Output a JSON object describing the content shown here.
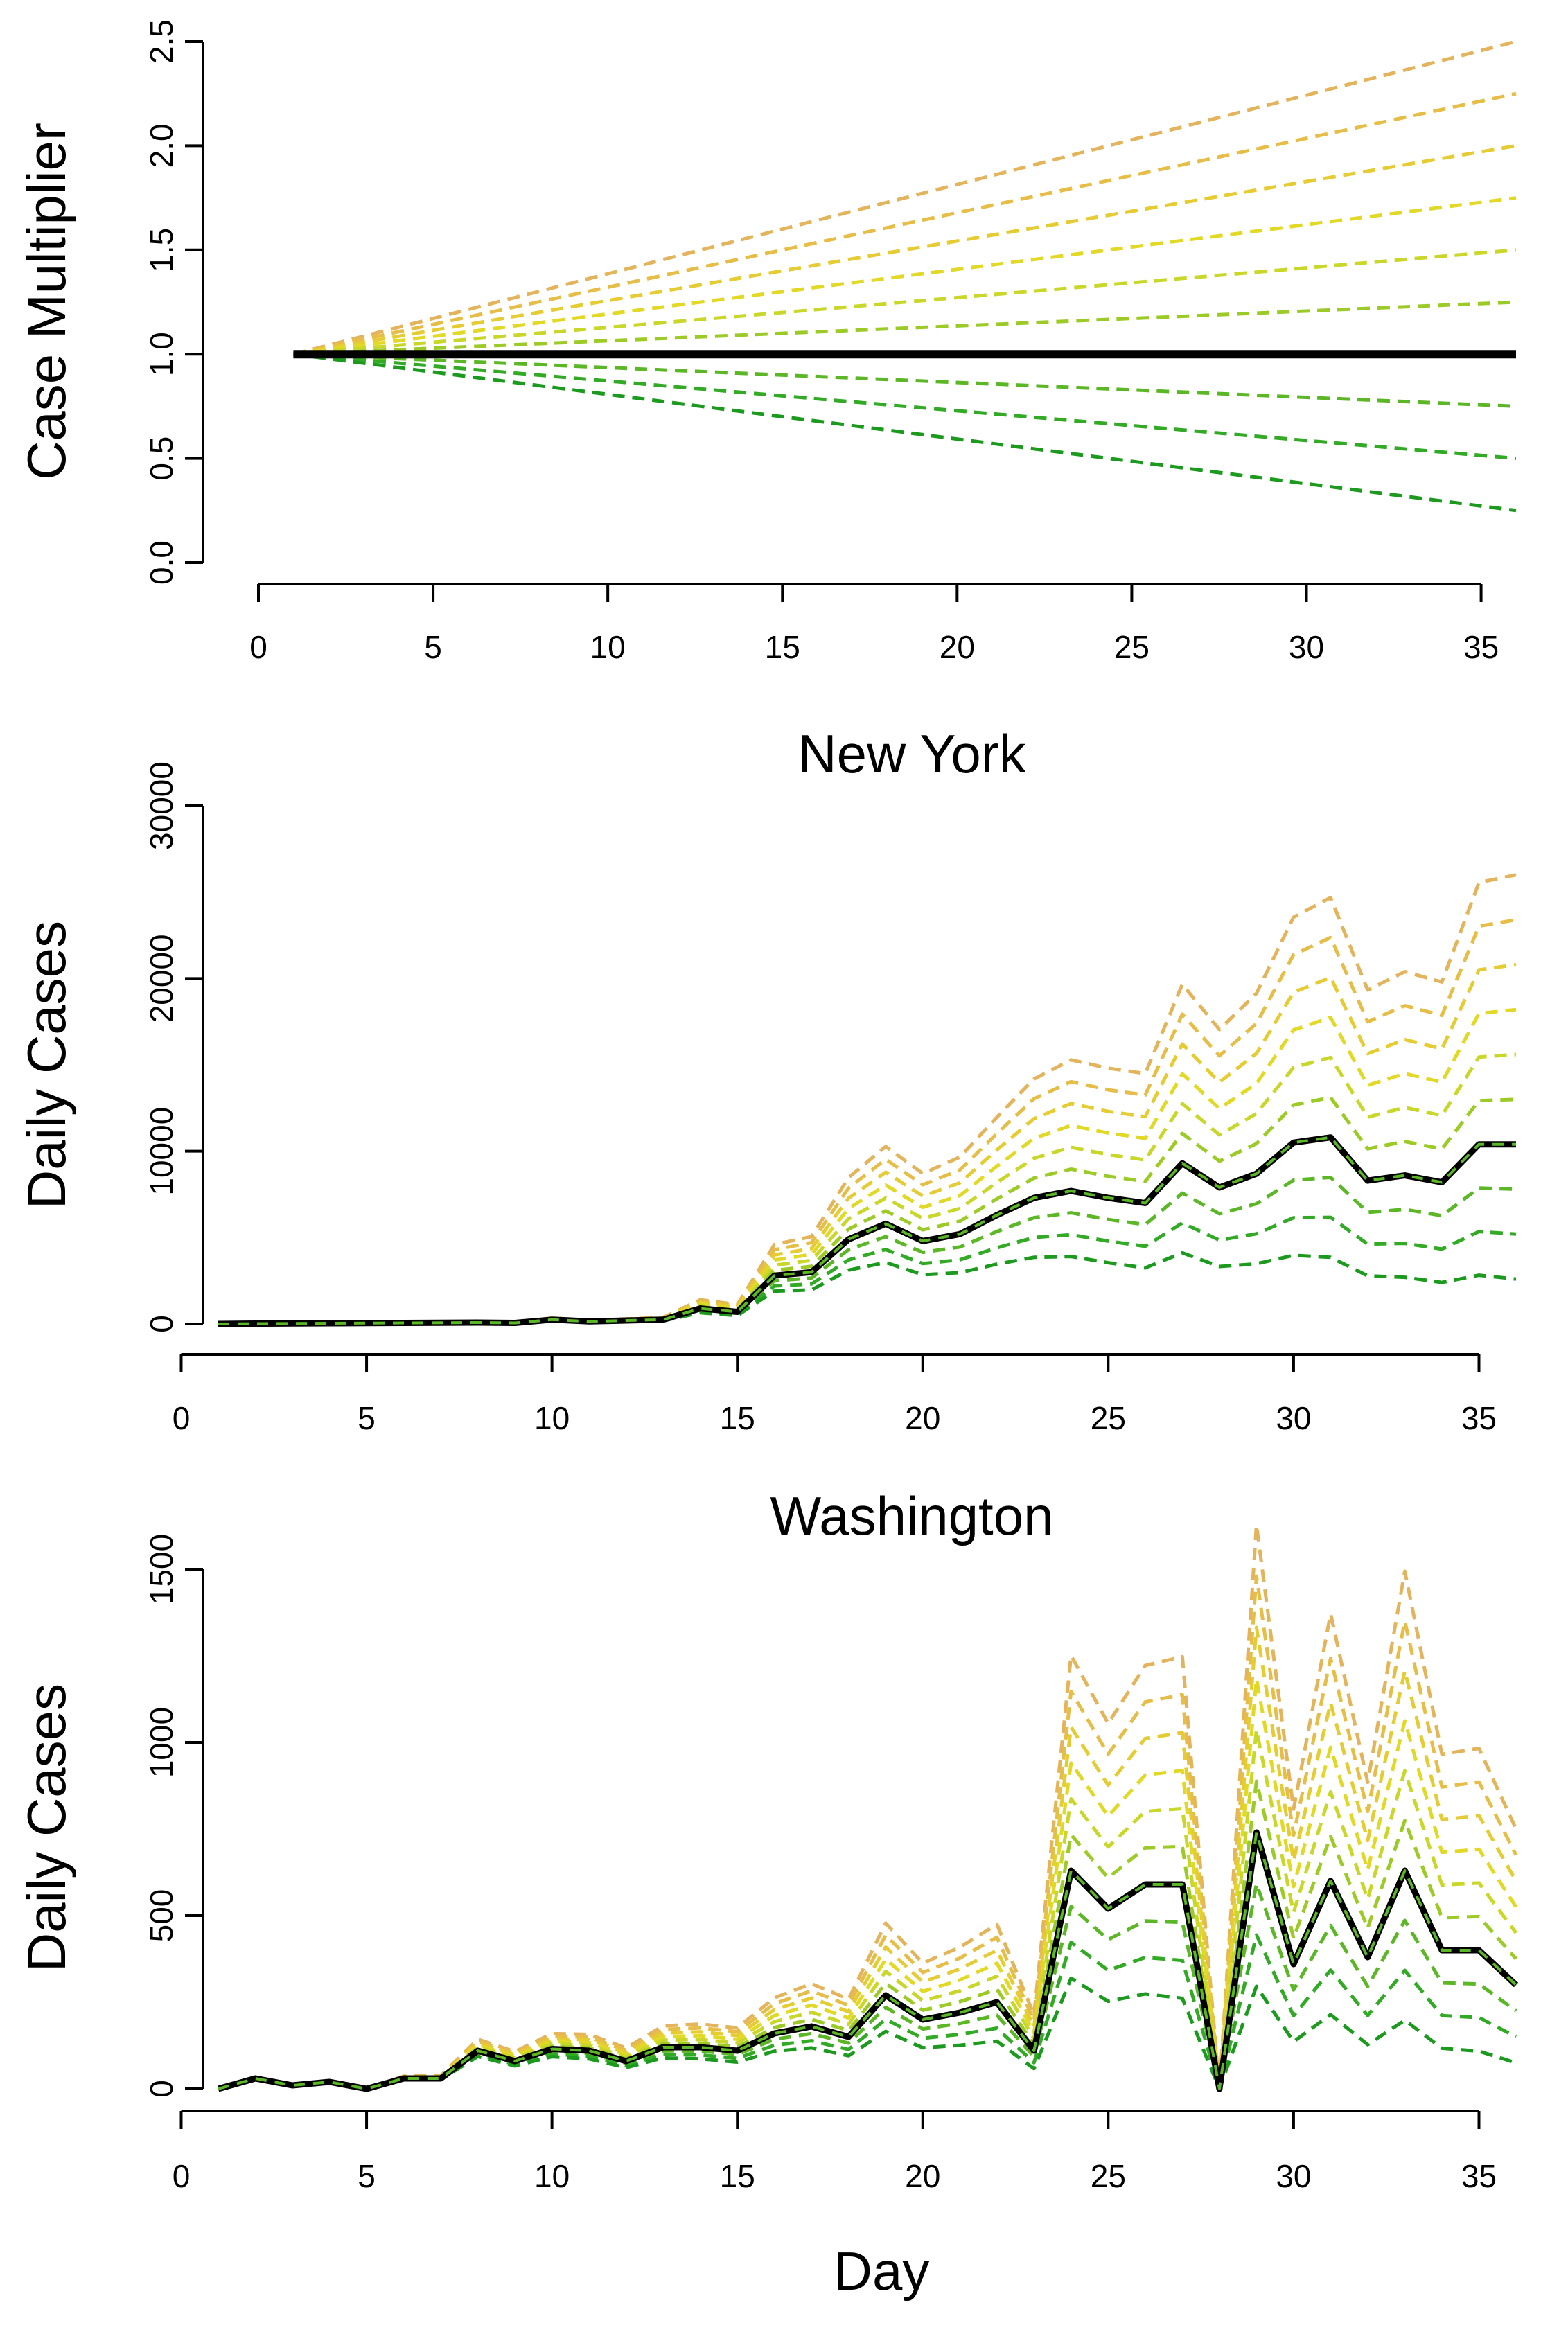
{
  "chart_data": [
    {
      "type": "line",
      "ylabel": "Case Multiplier",
      "ylim": [
        0,
        2.5
      ],
      "xlim": [
        0,
        36
      ],
      "xticks": [
        0,
        5,
        10,
        15,
        20,
        25,
        30,
        35
      ],
      "yticks": [
        0.0,
        0.5,
        1.0,
        1.5,
        2.0,
        2.5
      ],
      "ytick_labels": [
        "0.0",
        "0.5",
        "1.0",
        "1.5",
        "2.0",
        "2.5"
      ],
      "baseline": {
        "x": [
          1,
          36
        ],
        "values": [
          1.0,
          1.0
        ],
        "color": "#000000"
      },
      "scenarios": [
        {
          "end_multiplier": 2.5,
          "color": "#E3B45C"
        },
        {
          "end_multiplier": 2.25,
          "color": "#E6BE47"
        },
        {
          "end_multiplier": 2.0,
          "color": "#E6CC33"
        },
        {
          "end_multiplier": 1.75,
          "color": "#E2D927"
        },
        {
          "end_multiplier": 1.5,
          "color": "#C9D72A"
        },
        {
          "end_multiplier": 1.25,
          "color": "#9CCB27"
        },
        {
          "end_multiplier": 0.75,
          "color": "#5CB726"
        },
        {
          "end_multiplier": 0.5,
          "color": "#33AA25"
        },
        {
          "end_multiplier": 0.25,
          "color": "#1C9A1E"
        }
      ]
    },
    {
      "type": "line",
      "title": "New York",
      "ylabel": "Daily Cases",
      "ylim": [
        0,
        30000
      ],
      "xlim": [
        1,
        36
      ],
      "xticks": [
        0,
        5,
        10,
        15,
        20,
        25,
        30,
        35
      ],
      "yticks": [
        0,
        10000,
        20000,
        30000
      ],
      "ytick_labels": [
        "0",
        "10000",
        "20000",
        "30000"
      ],
      "x": [
        1,
        2,
        3,
        4,
        5,
        6,
        7,
        8,
        9,
        10,
        11,
        12,
        13,
        14,
        15,
        16,
        17,
        18,
        19,
        20,
        21,
        22,
        23,
        24,
        25,
        26,
        27,
        28,
        29,
        30,
        31,
        32,
        33,
        34,
        35,
        36
      ],
      "values": [
        0,
        20,
        30,
        40,
        50,
        60,
        70,
        80,
        60,
        250,
        150,
        200,
        250,
        900,
        700,
        2800,
        3000,
        4900,
        5800,
        4800,
        5200,
        6300,
        7300,
        7700,
        7300,
        7000,
        9300,
        7900,
        8700,
        10500,
        10800,
        8300,
        8600,
        8200,
        10400,
        10400
      ],
      "color": "#000000"
    },
    {
      "type": "line",
      "title": "Washington",
      "xlabel": "Day",
      "ylabel": "Daily Cases",
      "ylim": [
        0,
        1500
      ],
      "xlim": [
        1,
        36
      ],
      "xticks": [
        0,
        5,
        10,
        15,
        20,
        25,
        30,
        35
      ],
      "yticks": [
        0,
        500,
        1000,
        1500
      ],
      "ytick_labels": [
        "0",
        "500",
        "1000",
        "1500"
      ],
      "x": [
        1,
        2,
        3,
        4,
        5,
        6,
        7,
        8,
        9,
        10,
        11,
        12,
        13,
        14,
        15,
        16,
        17,
        18,
        19,
        20,
        21,
        22,
        23,
        24,
        25,
        26,
        27,
        28,
        29,
        30,
        31,
        32,
        33,
        34,
        35,
        36
      ],
      "values": [
        0,
        30,
        10,
        20,
        0,
        30,
        30,
        110,
        80,
        115,
        110,
        80,
        120,
        120,
        110,
        160,
        180,
        150,
        270,
        200,
        220,
        250,
        110,
        630,
        520,
        590,
        590,
        0,
        740,
        360,
        600,
        380,
        630,
        400,
        400,
        300
      ],
      "color": "#000000"
    }
  ]
}
